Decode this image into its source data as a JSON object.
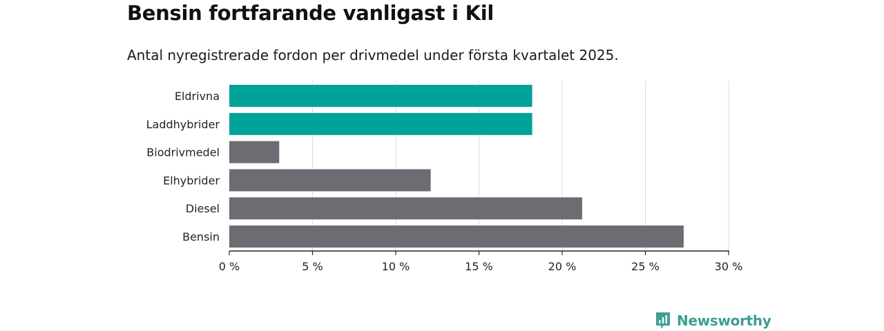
{
  "chart_data": {
    "type": "bar",
    "orientation": "horizontal",
    "title": "Bensin fortfarande vanligast i Kil",
    "subtitle": "Antal nyregistrerade fordon per drivmedel under första kvartalet 2025.",
    "categories": [
      "Eldrivna",
      "Laddhybrider",
      "Biodrivmedel",
      "Elhybrider",
      "Diesel",
      "Bensin"
    ],
    "values": [
      18.2,
      18.2,
      3.0,
      12.1,
      21.2,
      27.3
    ],
    "bar_colors": [
      "#00a39a",
      "#00a39a",
      "#6d6c73",
      "#6d6c73",
      "#6d6c73",
      "#6d6c73"
    ],
    "xlim": [
      0,
      30
    ],
    "xticks": [
      0,
      5,
      10,
      15,
      20,
      25,
      30
    ],
    "xtick_labels": [
      "0 %",
      "5 %",
      "10 %",
      "15 %",
      "20 %",
      "25 %",
      "30 %"
    ],
    "grid": "vertical",
    "legend": "none"
  },
  "brand": {
    "name": "Newsworthy",
    "icon": "newsworthy-logo-icon",
    "color": "#3d9e94"
  }
}
